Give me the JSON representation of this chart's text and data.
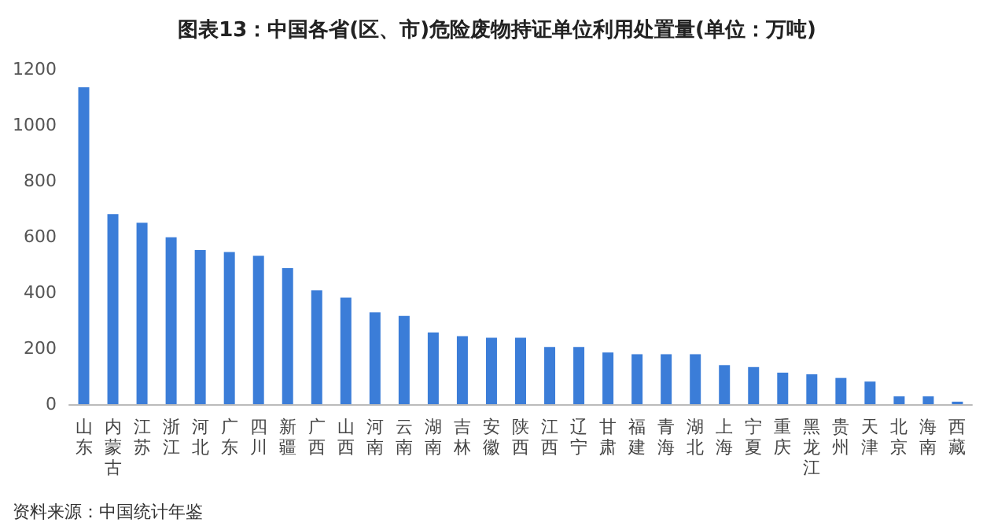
{
  "chart_data": {
    "type": "bar",
    "title": "图表13：中国各省(区、市)危险废物持证单位利用处置量(单位：万吨)",
    "categories": [
      "山东",
      "内蒙古",
      "江苏",
      "浙江",
      "河北",
      "广东",
      "四川",
      "新疆",
      "广西",
      "山西",
      "河南",
      "云南",
      "湖南",
      "吉林",
      "安徽",
      "陕西",
      "江西",
      "辽宁",
      "甘肃",
      "福建",
      "青海",
      "湖北",
      "上海",
      "宁夏",
      "重庆",
      "黑龙江",
      "贵州",
      "天津",
      "北京",
      "海南",
      "西藏"
    ],
    "values": [
      1135,
      681,
      650,
      598,
      552,
      545,
      532,
      487,
      408,
      382,
      329,
      316,
      257,
      244,
      238,
      238,
      205,
      205,
      185,
      179,
      179,
      179,
      140,
      133,
      113,
      107,
      94,
      81,
      28,
      28,
      9
    ],
    "color": "#3b7dd8",
    "ylim": [
      0,
      1200
    ],
    "yticks": [
      0,
      200,
      400,
      600,
      800,
      1000,
      1200
    ],
    "grid": false,
    "annotations": [
      "资料来源：中国统计年鉴"
    ]
  }
}
